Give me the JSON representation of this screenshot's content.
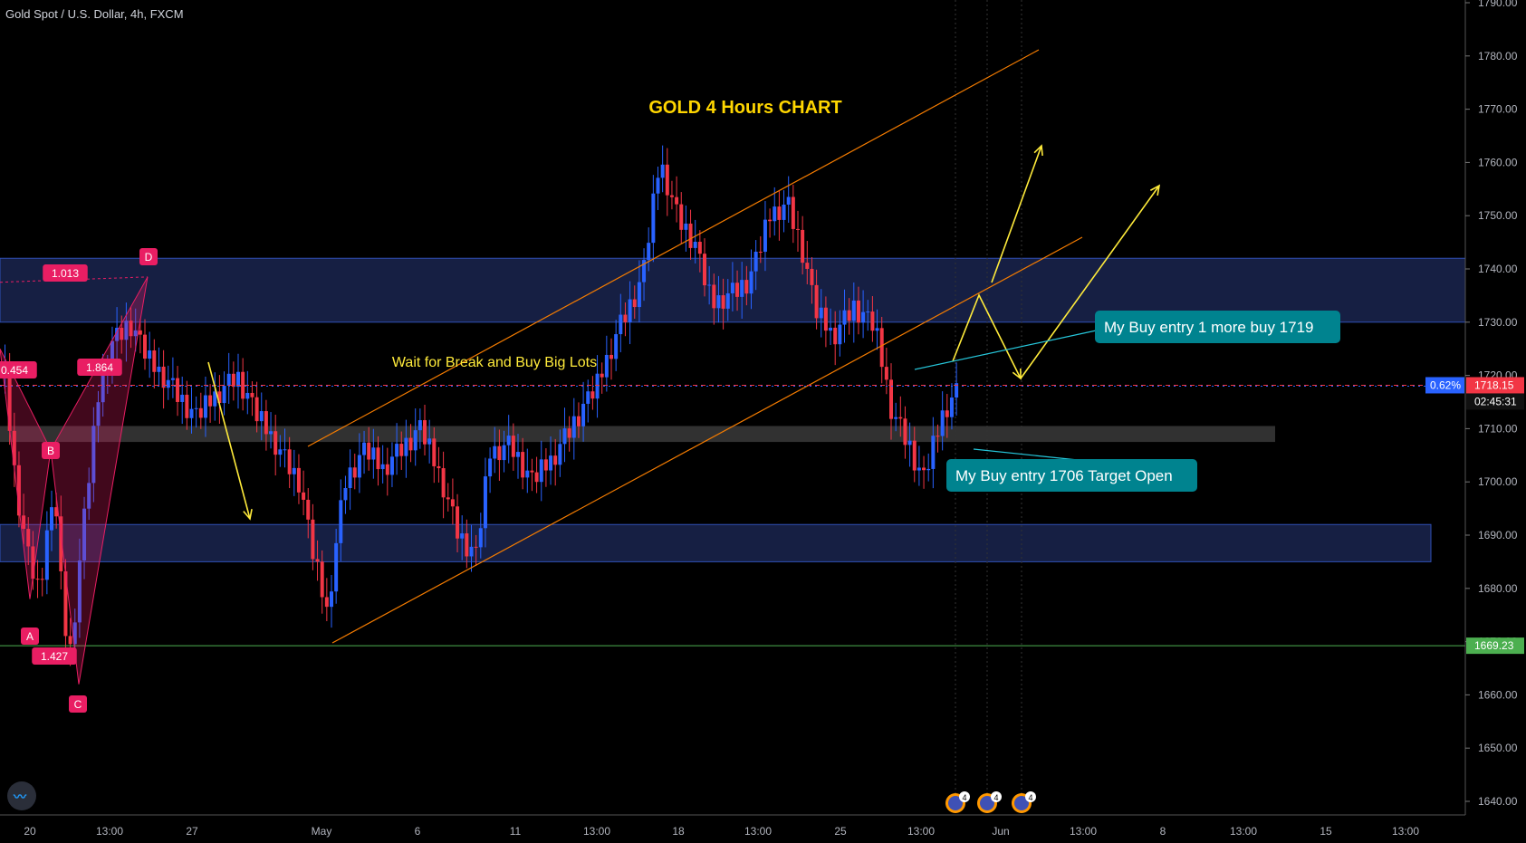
{
  "header": {
    "title": "Gold Spot / U.S. Dollar, 4h, FXCM"
  },
  "chart_data": {
    "type": "candlestick",
    "title": "GOLD 4 Hours CHART",
    "ylim": [
      1635,
      1792
    ],
    "y_ticks": [
      1640,
      1650,
      1660,
      1670,
      1680,
      1690,
      1700,
      1710,
      1720,
      1730,
      1740,
      1750,
      1760,
      1770,
      1780,
      1790
    ],
    "x_tick_labels": [
      "20",
      "13:00",
      "27",
      "May",
      "6",
      "11",
      "13:00",
      "18",
      "13:00",
      "25",
      "13:00",
      "Jun",
      "13:00",
      "8",
      "13:00",
      "15",
      "13:00"
    ],
    "current_price": "1718.15",
    "countdown": "02:45:31",
    "percent_label": "0.62%",
    "level_1669": "1669.23",
    "zones": [
      {
        "name": "upper-resistance-zone",
        "y_from": 1730,
        "y_to": 1742
      },
      {
        "name": "mid-grey-zone",
        "y_from": 1707.5,
        "y_to": 1710.5
      },
      {
        "name": "lower-support-zone",
        "y_from": 1685,
        "y_to": 1692
      }
    ],
    "pattern_points": [
      "D",
      "B",
      "A",
      "C"
    ],
    "pattern_ratios": [
      "1.013",
      "0.454",
      "1.864",
      "1.427"
    ],
    "annotations": [
      "Wait for Break and Buy Big Lots",
      "My Buy entry 1 more buy 1719",
      "My Buy entry 1706 Target Open"
    ],
    "event_badges": [
      "4",
      "4",
      "4"
    ],
    "colors": {
      "up": "#2962ff",
      "down": "#f23645",
      "zone": "#1e2a5a",
      "channel": "#f57c00",
      "arrow": "#ffeb3b",
      "callout": "#00838f",
      "pattern": "#e91e63",
      "support": "#4caf50"
    }
  }
}
